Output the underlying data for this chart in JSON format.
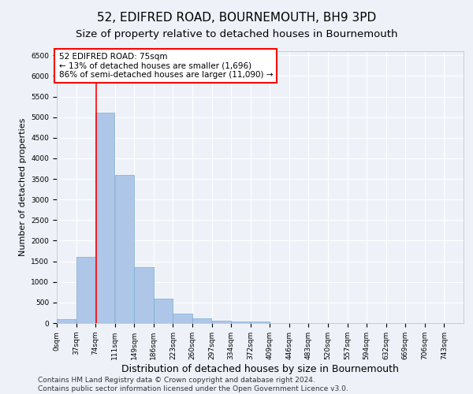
{
  "title": "52, EDIFRED ROAD, BOURNEMOUTH, BH9 3PD",
  "subtitle": "Size of property relative to detached houses in Bournemouth",
  "xlabel": "Distribution of detached houses by size in Bournemouth",
  "ylabel": "Number of detached properties",
  "footer_line1": "Contains HM Land Registry data © Crown copyright and database right 2024.",
  "footer_line2": "Contains public sector information licensed under the Open Government Licence v3.0.",
  "bin_labels": [
    "0sqm",
    "37sqm",
    "74sqm",
    "111sqm",
    "149sqm",
    "186sqm",
    "223sqm",
    "260sqm",
    "297sqm",
    "334sqm",
    "372sqm",
    "409sqm",
    "446sqm",
    "483sqm",
    "520sqm",
    "557sqm",
    "594sqm",
    "632sqm",
    "669sqm",
    "706sqm",
    "743sqm"
  ],
  "bar_values": [
    100,
    1600,
    5100,
    3600,
    1350,
    600,
    230,
    120,
    65,
    40,
    30,
    0,
    0,
    0,
    0,
    0,
    0,
    0,
    0,
    0
  ],
  "bar_color": "#aec6e8",
  "bar_edge_color": "#7aadd4",
  "ylim": [
    0,
    6600
  ],
  "yticks": [
    0,
    500,
    1000,
    1500,
    2000,
    2500,
    3000,
    3500,
    4000,
    4500,
    5000,
    5500,
    6000,
    6500
  ],
  "property_line_x": 75,
  "annotation_text_line1": "52 EDIFRED ROAD: 75sqm",
  "annotation_text_line2": "← 13% of detached houses are smaller (1,696)",
  "annotation_text_line3": "86% of semi-detached houses are larger (11,090) →",
  "annotation_box_color": "white",
  "annotation_box_edge_color": "red",
  "vline_color": "red",
  "background_color": "#eef2f8",
  "grid_color": "white",
  "title_fontsize": 11,
  "subtitle_fontsize": 9.5,
  "xlabel_fontsize": 9,
  "ylabel_fontsize": 8,
  "annotation_fontsize": 7.5,
  "tick_fontsize": 6.5,
  "footer_fontsize": 6.5
}
